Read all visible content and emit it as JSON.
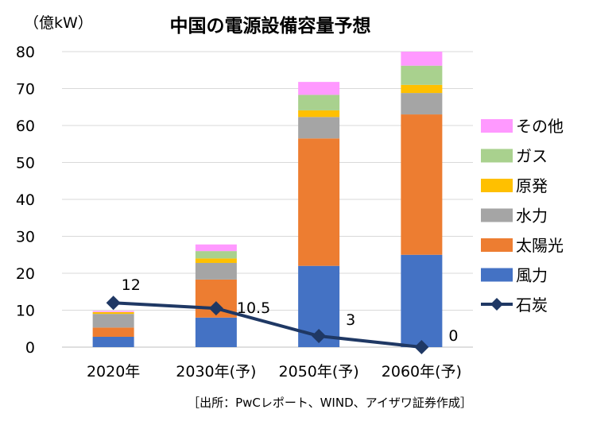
{
  "chart_data": {
    "type": "bar",
    "title": "中国の電源設備容量予想",
    "ylabel": "（億kW）",
    "ylim": [
      0,
      80
    ],
    "yticks": [
      0,
      10,
      20,
      30,
      40,
      50,
      60,
      70,
      80
    ],
    "grid": true,
    "legend_placement": "right",
    "categories": [
      "2020年",
      "2030年(予)",
      "2050年(予)",
      "2060年(予)"
    ],
    "series": [
      {
        "name": "風力",
        "color": "#4472C4",
        "values": [
          2.8,
          8.0,
          22.0,
          25.0
        ]
      },
      {
        "name": "太陽光",
        "color": "#ED7D31",
        "values": [
          2.5,
          10.3,
          34.5,
          38.0
        ]
      },
      {
        "name": "水力",
        "color": "#A5A5A5",
        "values": [
          3.7,
          4.5,
          5.8,
          5.8
        ]
      },
      {
        "name": "原発",
        "color": "#FFC000",
        "values": [
          0.5,
          1.2,
          1.8,
          2.2
        ]
      },
      {
        "name": "ガス",
        "color": "#A9D18E",
        "values": [
          0.0,
          2.0,
          4.2,
          5.2
        ]
      },
      {
        "name": "その他",
        "color": "#FF99FF",
        "values": [
          0.3,
          1.8,
          3.5,
          3.8
        ]
      }
    ],
    "line_series": {
      "name": "石炭",
      "color": "#1F3864",
      "marker": "diamond",
      "values": [
        12,
        10.5,
        3,
        0
      ],
      "data_labels": [
        "12",
        "10.5",
        "3",
        "0"
      ]
    },
    "legend_order": [
      "その他",
      "ガス",
      "原発",
      "水力",
      "太陽光",
      "風力",
      "石炭"
    ],
    "source": "［出所：PwCレポート、WIND、アイザワ証券作成］"
  }
}
